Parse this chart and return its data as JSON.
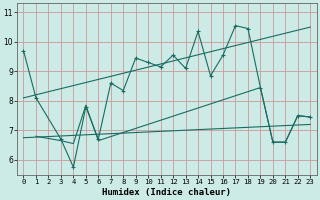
{
  "title": "",
  "xlabel": "Humidex (Indice chaleur)",
  "bg_color": "#cceae6",
  "grid_color": "#cc9999",
  "line_color": "#1a6b62",
  "xlim": [
    -0.5,
    23.5
  ],
  "ylim": [
    5.5,
    11.3
  ],
  "yticks": [
    6,
    7,
    8,
    9,
    10,
    11
  ],
  "xticks": [
    0,
    1,
    2,
    3,
    4,
    5,
    6,
    7,
    8,
    9,
    10,
    11,
    12,
    13,
    14,
    15,
    16,
    17,
    18,
    19,
    20,
    21,
    22,
    23
  ],
  "series": [
    {
      "x": [
        0,
        1,
        3,
        4,
        5,
        6,
        7,
        8,
        9,
        10,
        11,
        12,
        13,
        14,
        15,
        16,
        17,
        18,
        19,
        20,
        21,
        22,
        23
      ],
      "y": [
        9.7,
        8.1,
        6.7,
        5.75,
        7.8,
        6.7,
        8.6,
        8.35,
        9.45,
        9.3,
        9.15,
        9.55,
        9.1,
        10.35,
        8.85,
        9.55,
        10.55,
        10.45,
        8.45,
        6.6,
        6.6,
        7.5,
        7.45
      ]
    },
    {
      "x": [
        0,
        23
      ],
      "y": [
        8.1,
        10.5
      ]
    },
    {
      "x": [
        0,
        23
      ],
      "y": [
        6.75,
        7.2
      ]
    },
    {
      "x": [
        1,
        3,
        4,
        5,
        6,
        19,
        20,
        21,
        22,
        23
      ],
      "y": [
        6.8,
        6.65,
        6.55,
        7.85,
        6.65,
        8.45,
        6.6,
        6.6,
        7.5,
        7.45
      ]
    }
  ]
}
